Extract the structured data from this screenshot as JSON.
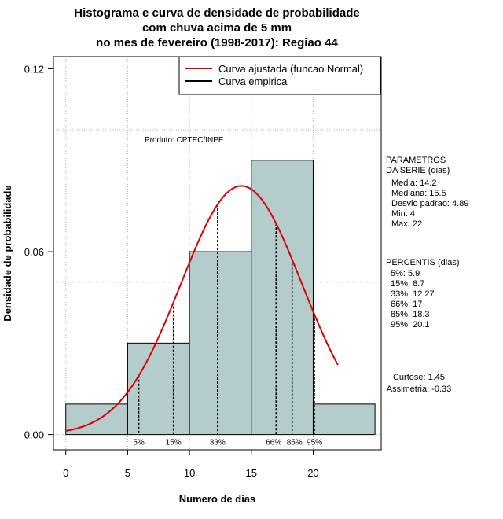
{
  "chart_data": {
    "type": "bar",
    "title_lines": [
      "Histograma e curva de densidade de probabilidade",
      "com chuva acima de 5 mm",
      "no mes de fevereiro (1998-2017): Regiao 44"
    ],
    "xlabel": "Numero de dias",
    "ylabel": "Densidade de probabilidade",
    "xlim": [
      -1,
      25.5
    ],
    "ylim": [
      -0.005,
      0.124
    ],
    "x_ticks": [
      0,
      5,
      10,
      15,
      20
    ],
    "x_tick_labels": [
      "0",
      "5",
      "10",
      "15",
      "20"
    ],
    "y_ticks": [
      0.0,
      0.06,
      0.12
    ],
    "y_tick_labels": [
      "0.00",
      "0.06",
      "0.12"
    ],
    "grid_x": [
      0,
      5,
      10,
      15,
      20
    ],
    "grid_y": [
      0.0,
      0.05,
      0.1
    ],
    "bars": [
      {
        "x0": 0,
        "x1": 5,
        "density": 0.01
      },
      {
        "x0": 5,
        "x1": 10,
        "density": 0.03
      },
      {
        "x0": 10,
        "x1": 15,
        "density": 0.06
      },
      {
        "x0": 15,
        "x1": 20,
        "density": 0.09
      },
      {
        "x0": 20,
        "x1": 25,
        "density": 0.01
      }
    ],
    "fitted_curve": {
      "distribution": "normal",
      "mean": 14.2,
      "sd": 4.89,
      "x_range": [
        0,
        22
      ],
      "color": "#e00000"
    },
    "legend": {
      "position": "top-right",
      "entries": [
        {
          "label": "Curva ajustada (funcao Normal)",
          "color": "#e00000"
        },
        {
          "label": "Curva empirica",
          "color": "#000000"
        }
      ]
    },
    "product_label": "Produto: CPTEC/INPE",
    "percentiles": [
      {
        "label": "5%",
        "value": 5.9
      },
      {
        "label": "15%",
        "value": 8.7
      },
      {
        "label": "33%",
        "value": 12.27
      },
      {
        "label": "66%",
        "value": 17
      },
      {
        "label": "85%",
        "value": 18.3
      },
      {
        "label": "95%",
        "value": 20.1
      }
    ],
    "parameters_block": {
      "heading_lines": [
        "PARAMETROS",
        "DA SERIE (dias)"
      ],
      "items": [
        "Media: 14.2",
        "Mediana: 15.5",
        "Desvio padrao: 4.89",
        "Min: 4",
        "Max: 22"
      ]
    },
    "percentis_block": {
      "heading": "PERCENTIS (dias)",
      "items": [
        "5%: 5.9",
        "15%: 8.7",
        "33%: 12.27",
        "66%: 17",
        "85%: 18.3",
        "95%: 20.1"
      ]
    },
    "shape_block": {
      "items": [
        "Curtose: 1.45",
        "Assimetria: -0.33"
      ]
    },
    "colors": {
      "bar_fill": "#b4cccc",
      "grid": "#b0b0b0",
      "curve": "#e00000",
      "percentile_line": "#000000"
    }
  }
}
